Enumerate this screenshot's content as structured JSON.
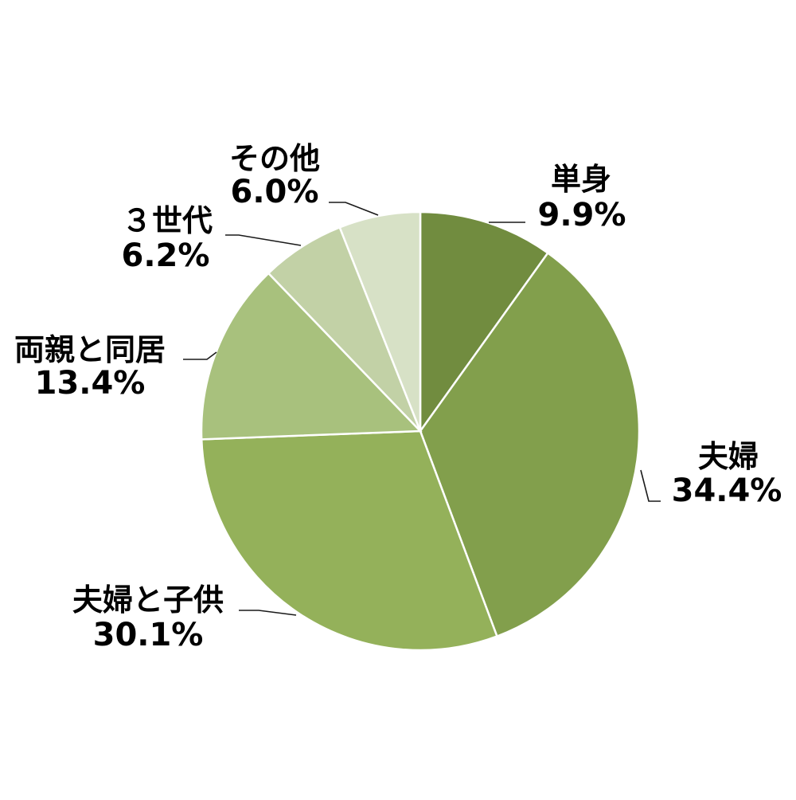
{
  "chart_data": {
    "type": "pie",
    "title": "",
    "slices": [
      {
        "label": "単身",
        "value": 9.9,
        "value_text": "9.9%",
        "color": "#718c3f"
      },
      {
        "label": "夫婦",
        "value": 34.4,
        "value_text": "34.4%",
        "color": "#829f4c"
      },
      {
        "label": "夫婦と子供",
        "value": 30.1,
        "value_text": "30.1%",
        "color": "#94b15a"
      },
      {
        "label": "両親と同居",
        "value": 13.4,
        "value_text": "13.4%",
        "color": "#a8c17d"
      },
      {
        "label": "３世代",
        "value": 6.2,
        "value_text": "6.2%",
        "color": "#c2d1a6"
      },
      {
        "label": "その他",
        "value": 6.0,
        "value_text": "6.0%",
        "color": "#d7e1c6"
      }
    ],
    "start_angle": "12 o'clock",
    "direction": "clockwise",
    "legend": "none",
    "data_labels": "outside with leader lines"
  }
}
